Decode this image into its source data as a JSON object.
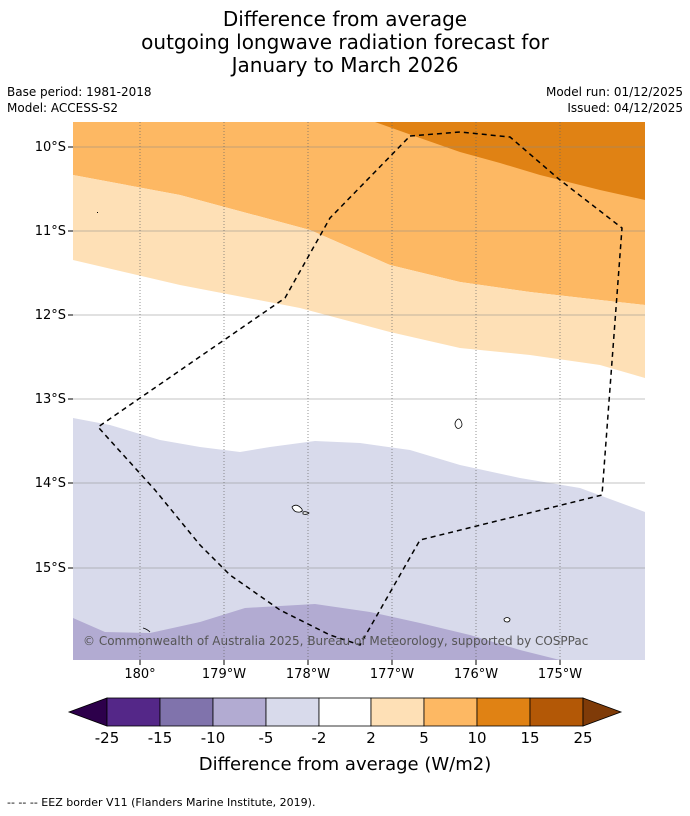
{
  "title": {
    "line1": "Difference from average",
    "line2": "outgoing longwave radiation forecast for",
    "line3": "January to March 2026"
  },
  "meta": {
    "base_period": "Base period: 1981-2018",
    "model": "Model: ACCESS-S2",
    "model_run": "Model run: 01/12/2025",
    "issued": "Issued: 04/12/2025"
  },
  "map": {
    "lat_labels": [
      "10°S",
      "11°S",
      "12°S",
      "13°S",
      "14°S",
      "15°S"
    ],
    "lon_labels": [
      "180°",
      "179°W",
      "178°W",
      "177°W",
      "176°W",
      "175°W"
    ],
    "copyright": "© Commonwealth of Australia 2025, Bureau of Meteorology, supported by COSPPac",
    "colors": {
      "orange_dark": "#e08214",
      "orange_mid": "#fdb863",
      "orange_light": "#fee0b6",
      "lavender_light": "#d8daeb",
      "lavender_mid": "#b2abd2"
    }
  },
  "legend": {
    "ticks": [
      "-25",
      "-15",
      "-10",
      "-5",
      "-2",
      "2",
      "5",
      "10",
      "15",
      "25"
    ],
    "colors": [
      "#2d004b",
      "#542788",
      "#8073ac",
      "#b2abd2",
      "#d8daeb",
      "#ffffff",
      "#fee0b6",
      "#fdb863",
      "#e08214",
      "#b35806",
      "#7f3b08"
    ],
    "label": "Difference from average (W/m2)"
  },
  "footer": "--  --  -- EEZ border V11 (Flanders Marine Institute, 2019)."
}
